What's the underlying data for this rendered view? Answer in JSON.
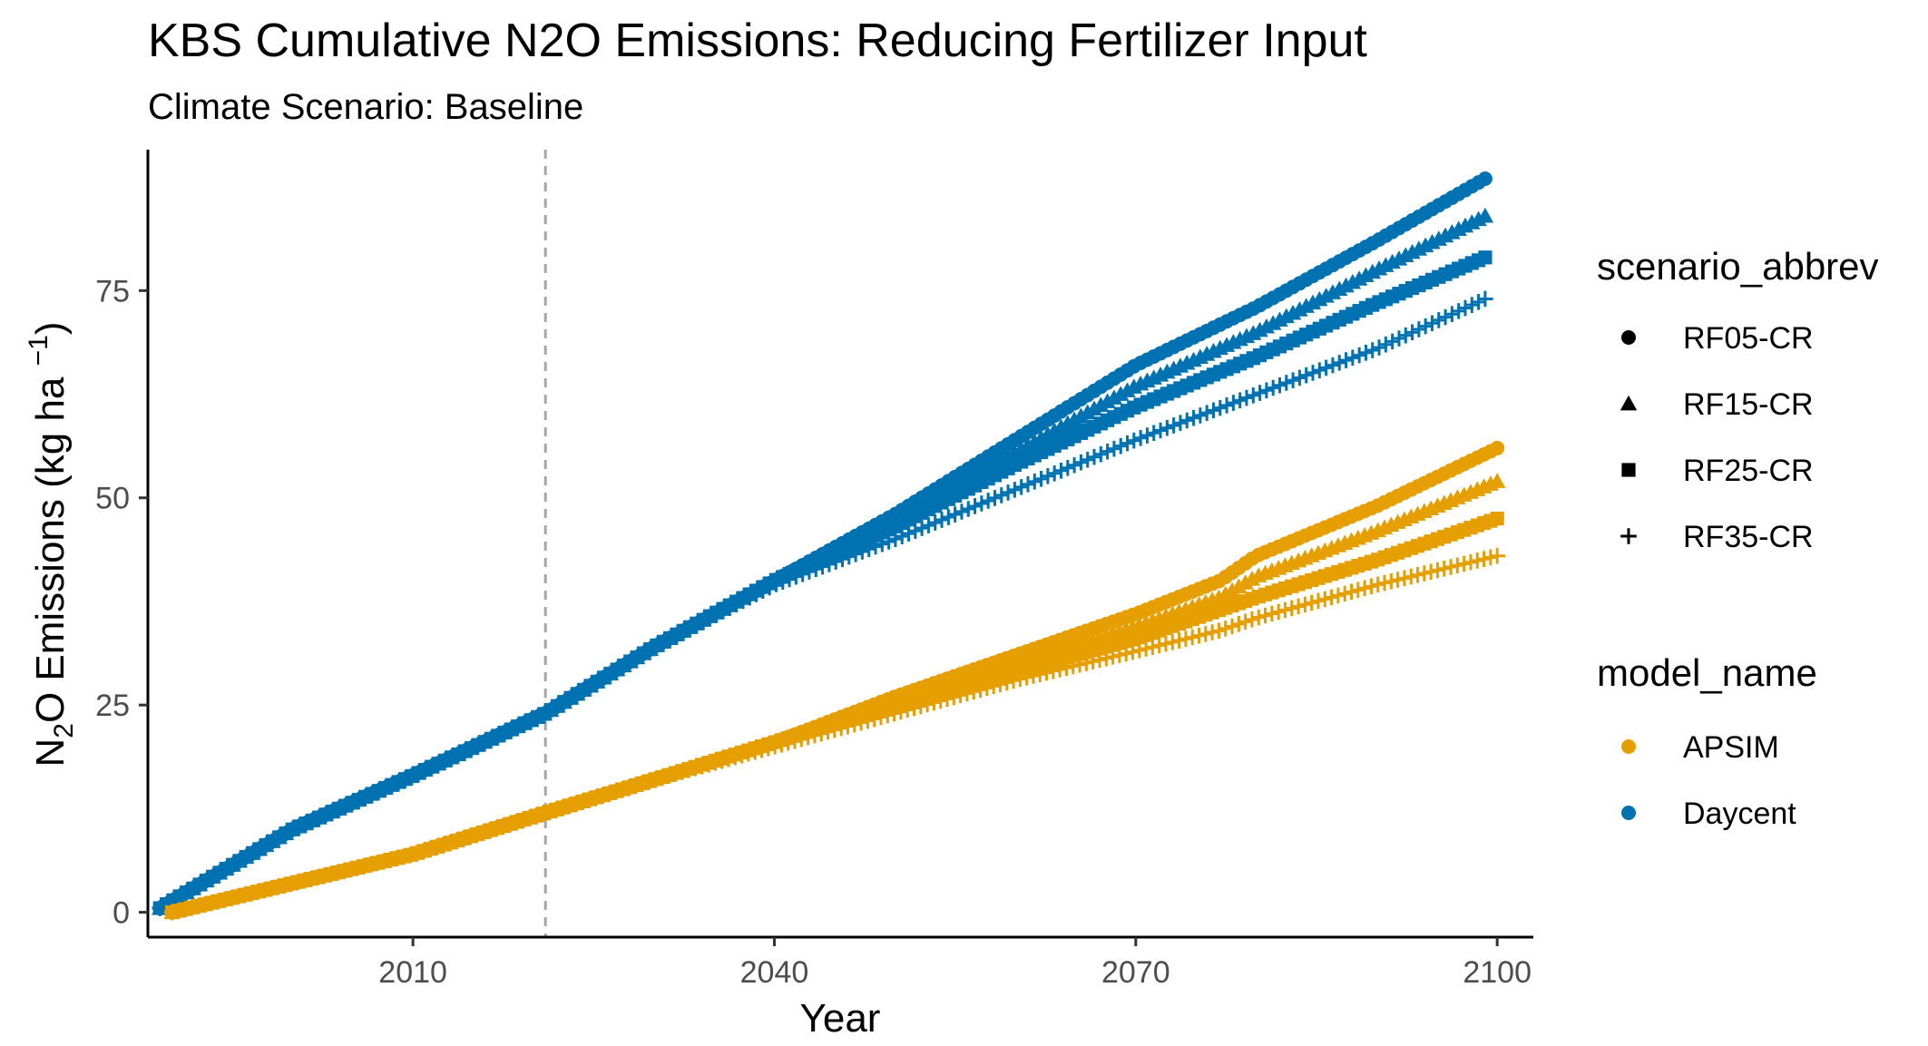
{
  "chart_data": {
    "type": "scatter",
    "title": "KBS  Cumulative N2O Emissions: Reducing Fertilizer Input",
    "subtitle": "Climate Scenario: Baseline",
    "xlabel": "Year",
    "ylabel": "N2O Emissions (kg ha -1)",
    "ylabel_parts": {
      "pre": "N",
      "sub": "2",
      "mid": "O Emissions (kg ha ",
      "sup": "−1",
      "post": ")"
    },
    "xlim": [
      1988,
      2103
    ],
    "ylim": [
      -3,
      92
    ],
    "x_ticks": [
      2010,
      2040,
      2070,
      2100
    ],
    "x_tick_labels": [
      "2010",
      "2040",
      "2070",
      "2100"
    ],
    "y_ticks": [
      0,
      25,
      50,
      75
    ],
    "y_tick_labels": [
      "0",
      "25",
      "50",
      "75"
    ],
    "reference_line": {
      "x": 2021,
      "style": "dashed",
      "color": "#a6a6a6"
    },
    "grid": false,
    "legend_placement": "right",
    "legends": {
      "shape": {
        "title": "scenario_abbrev",
        "items": [
          {
            "label": "RF05-CR",
            "shape": "circle"
          },
          {
            "label": "RF15-CR",
            "shape": "triangle"
          },
          {
            "label": "RF25-CR",
            "shape": "square"
          },
          {
            "label": "RF35-CR",
            "shape": "plus"
          }
        ]
      },
      "color": {
        "title": "model_name",
        "items": [
          {
            "label": "APSIM",
            "color": "#E69F00"
          },
          {
            "label": "Daycent",
            "color": "#0072B2"
          }
        ]
      }
    },
    "series": [
      {
        "model": "Daycent",
        "scenario": "RF05-CR",
        "color": "#0072B2",
        "shape": "circle",
        "x": [
          1989,
          2000,
          2010,
          2021,
          2030,
          2040,
          2050,
          2060,
          2070,
          2080,
          2090,
          2099
        ],
        "y": [
          0.5,
          10,
          16.5,
          24,
          32,
          40,
          48,
          57,
          66,
          73,
          81,
          88.5
        ]
      },
      {
        "model": "Daycent",
        "scenario": "RF15-CR",
        "color": "#0072B2",
        "shape": "triangle",
        "x": [
          1989,
          2000,
          2010,
          2021,
          2030,
          2040,
          2050,
          2060,
          2070,
          2080,
          2090,
          2099
        ],
        "y": [
          0.5,
          10,
          16.5,
          24,
          32,
          40,
          47.5,
          55.5,
          63.5,
          70,
          77.5,
          84
        ]
      },
      {
        "model": "Daycent",
        "scenario": "RF25-CR",
        "color": "#0072B2",
        "shape": "square",
        "x": [
          1989,
          2000,
          2010,
          2021,
          2030,
          2040,
          2050,
          2060,
          2070,
          2080,
          2090,
          2099
        ],
        "y": [
          0.5,
          10,
          16.5,
          24,
          32,
          40,
          46.5,
          54,
          61,
          67,
          73.5,
          79
        ]
      },
      {
        "model": "Daycent",
        "scenario": "RF35-CR",
        "color": "#0072B2",
        "shape": "plus",
        "x": [
          1989,
          2000,
          2010,
          2021,
          2030,
          2040,
          2050,
          2060,
          2070,
          2080,
          2090,
          2099
        ],
        "y": [
          0.5,
          10,
          16.5,
          24,
          32,
          39.5,
          45,
          51,
          57,
          62.5,
          68,
          74
        ]
      },
      {
        "model": "APSIM",
        "scenario": "RF05-CR",
        "color": "#E69F00",
        "shape": "circle",
        "x": [
          1990,
          2000,
          2010,
          2021,
          2030,
          2040,
          2050,
          2060,
          2070,
          2077,
          2080,
          2090,
          2100
        ],
        "y": [
          0,
          3.5,
          7,
          12,
          16,
          20.5,
          26,
          31,
          36,
          40,
          43,
          49,
          56
        ]
      },
      {
        "model": "APSIM",
        "scenario": "RF15-CR",
        "color": "#E69F00",
        "shape": "triangle",
        "x": [
          1990,
          2000,
          2010,
          2021,
          2030,
          2040,
          2050,
          2060,
          2070,
          2077,
          2080,
          2090,
          2100
        ],
        "y": [
          0,
          3.5,
          7,
          12,
          16,
          20.5,
          25.5,
          30,
          34.5,
          38,
          40.5,
          46,
          52
        ]
      },
      {
        "model": "APSIM",
        "scenario": "RF25-CR",
        "color": "#E69F00",
        "shape": "square",
        "x": [
          1990,
          2000,
          2010,
          2021,
          2030,
          2040,
          2050,
          2060,
          2070,
          2077,
          2080,
          2090,
          2100
        ],
        "y": [
          0,
          3.5,
          7,
          12,
          16,
          20.5,
          25,
          29,
          33,
          36.5,
          38,
          42.5,
          47.5
        ]
      },
      {
        "model": "APSIM",
        "scenario": "RF35-CR",
        "color": "#E69F00",
        "shape": "plus",
        "x": [
          1990,
          2000,
          2010,
          2021,
          2030,
          2040,
          2050,
          2060,
          2070,
          2077,
          2080,
          2090,
          2100
        ],
        "y": [
          0,
          3.5,
          7,
          12,
          16,
          20,
          24,
          28,
          31.5,
          34,
          35.5,
          39.5,
          43
        ]
      }
    ]
  }
}
